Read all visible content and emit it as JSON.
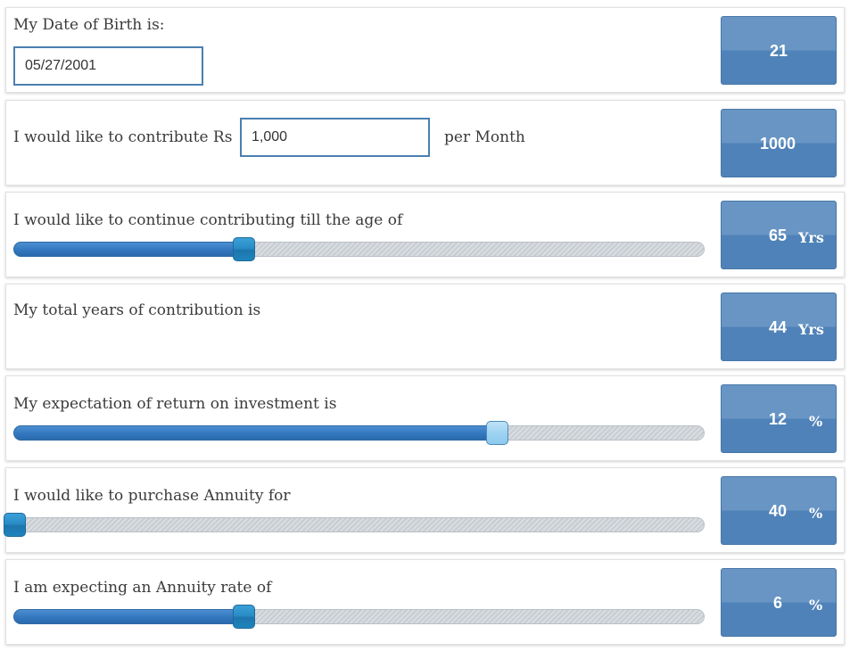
{
  "dob": {
    "label": "My Date of Birth is:",
    "value": "05/27/2001",
    "result": "21"
  },
  "contribution": {
    "label_prefix": "I would like to contribute Rs",
    "value": "1,000",
    "label_suffix": "per Month",
    "result": "1000"
  },
  "retire_age": {
    "label": "I would like to continue contributing till the age of",
    "result": "65",
    "unit": "Yrs",
    "slider_fraction": 0.333
  },
  "total_years": {
    "label": "My total years of contribution is",
    "result": "44",
    "unit": "Yrs"
  },
  "return_rate": {
    "label": "My expectation of return on investment is",
    "result": "12",
    "unit": "%",
    "slider_fraction": 0.7
  },
  "annuity_purchase": {
    "label": "I would like to purchase Annuity for",
    "result": "40",
    "unit": "%",
    "slider_fraction": 0.0
  },
  "annuity_rate": {
    "label": "I am expecting an Annuity rate of",
    "result": "6",
    "unit": "%",
    "slider_fraction": 0.333
  },
  "colors": {
    "accent_blue": "#4f82b8",
    "input_border": "#4a7fb0",
    "slider_fill": "#3579c0"
  }
}
